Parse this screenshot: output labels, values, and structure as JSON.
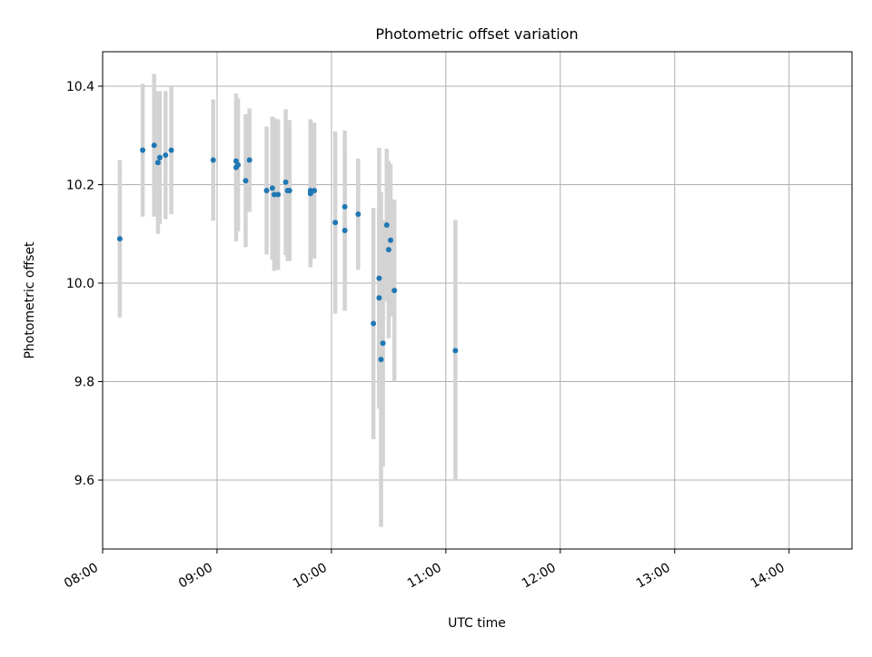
{
  "chart_data": {
    "type": "scatter",
    "title": "Photometric offset variation",
    "xlabel": "UTC time",
    "ylabel": "Photometric offset",
    "xlim": [
      "08:00",
      "14:33"
    ],
    "ylim": [
      9.46,
      10.47
    ],
    "x_ticks": [
      "08:00",
      "09:00",
      "10:00",
      "11:00",
      "12:00",
      "13:00",
      "14:00"
    ],
    "y_ticks": [
      "9.6",
      "9.8",
      "10.0",
      "10.2",
      "10.4"
    ],
    "grid": true,
    "colors": {
      "marker": "#1f77b4",
      "errorbar": "#d3d3d3"
    },
    "series": [
      {
        "name": "photometric offset",
        "points": [
          {
            "t": "08:09",
            "y": 10.09,
            "err": 0.16
          },
          {
            "t": "08:21",
            "y": 10.27,
            "err": 0.135
          },
          {
            "t": "08:27",
            "y": 10.28,
            "err": 0.145
          },
          {
            "t": "08:29",
            "y": 10.245,
            "err": 0.145
          },
          {
            "t": "08:30",
            "y": 10.255,
            "err": 0.135
          },
          {
            "t": "08:33",
            "y": 10.26,
            "err": 0.13
          },
          {
            "t": "08:36",
            "y": 10.27,
            "err": 0.13
          },
          {
            "t": "08:58",
            "y": 10.25,
            "err": 0.123
          },
          {
            "t": "09:10",
            "y": 10.248,
            "err": 0.122
          },
          {
            "t": "09:10",
            "y": 10.235,
            "err": 0.15
          },
          {
            "t": "09:11",
            "y": 10.24,
            "err": 0.135
          },
          {
            "t": "09:15",
            "y": 10.208,
            "err": 0.135
          },
          {
            "t": "09:17",
            "y": 10.25,
            "err": 0.105
          },
          {
            "t": "09:26",
            "y": 10.188,
            "err": 0.13
          },
          {
            "t": "09:29",
            "y": 10.193,
            "err": 0.145
          },
          {
            "t": "09:30",
            "y": 10.18,
            "err": 0.155
          },
          {
            "t": "09:32",
            "y": 10.18,
            "err": 0.153
          },
          {
            "t": "09:36",
            "y": 10.205,
            "err": 0.148
          },
          {
            "t": "09:37",
            "y": 10.188,
            "err": 0.143
          },
          {
            "t": "09:38",
            "y": 10.188,
            "err": 0.143
          },
          {
            "t": "09:49",
            "y": 10.188,
            "err": 0.145
          },
          {
            "t": "09:49",
            "y": 10.182,
            "err": 0.15
          },
          {
            "t": "09:51",
            "y": 10.188,
            "err": 0.138
          },
          {
            "t": "10:02",
            "y": 10.123,
            "err": 0.185
          },
          {
            "t": "10:07",
            "y": 10.155,
            "err": 0.155
          },
          {
            "t": "10:07",
            "y": 10.107,
            "err": 0.163
          },
          {
            "t": "10:14",
            "y": 10.14,
            "err": 0.113
          },
          {
            "t": "10:22",
            "y": 9.918,
            "err": 0.235
          },
          {
            "t": "10:25",
            "y": 9.97,
            "err": 0.19
          },
          {
            "t": "10:25",
            "y": 10.01,
            "err": 0.265
          },
          {
            "t": "10:26",
            "y": 9.845,
            "err": 0.34
          },
          {
            "t": "10:27",
            "y": 9.878,
            "err": 0.25
          },
          {
            "t": "10:29",
            "y": 10.118,
            "err": 0.155
          },
          {
            "t": "10:30",
            "y": 10.068,
            "err": 0.18
          },
          {
            "t": "10:31",
            "y": 10.087,
            "err": 0.155
          },
          {
            "t": "10:33",
            "y": 9.985,
            "err": 0.185
          },
          {
            "t": "11:05",
            "y": 9.863,
            "err": 0.265
          }
        ]
      }
    ]
  }
}
